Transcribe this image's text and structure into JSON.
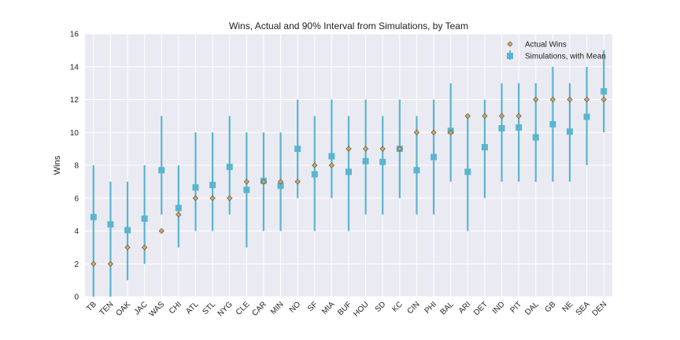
{
  "chart_data": {
    "type": "scatter",
    "title": "Wins, Actual and 90% Interval from Simulations, by Team",
    "xlabel": "",
    "ylabel": "Wins",
    "ylim": [
      0,
      16
    ],
    "yticks": [
      0,
      2,
      4,
      6,
      8,
      10,
      12,
      14,
      16
    ],
    "grid": true,
    "legend_position": "top-right",
    "categories": [
      "TB",
      "TEN",
      "OAK",
      "JAC",
      "WAS",
      "CHI",
      "ATL",
      "STL",
      "NYG",
      "CLE",
      "CAR",
      "MIN",
      "NO",
      "SF",
      "MIA",
      "BUF",
      "HOU",
      "SD",
      "KC",
      "CIN",
      "PHI",
      "BAL",
      "ARI",
      "DET",
      "IND",
      "PIT",
      "DAL",
      "GB",
      "NE",
      "SEA",
      "DEN"
    ],
    "series": [
      {
        "name": "Actual Wins",
        "marker": "diamond",
        "color": "#c8a86a",
        "values": [
          2,
          2,
          3,
          3,
          4,
          5,
          6,
          6,
          6,
          7,
          7,
          7,
          7,
          8,
          8,
          9,
          9,
          9,
          9,
          10,
          10,
          10,
          11,
          11,
          11,
          11,
          12,
          12,
          12,
          12,
          12
        ]
      },
      {
        "name": "Simulations, with Mean",
        "marker": "square",
        "color": "#5bb5cf",
        "values": [
          4.85,
          4.4,
          4.05,
          4.75,
          7.7,
          5.4,
          6.65,
          6.8,
          7.9,
          6.5,
          7.05,
          6.75,
          9.0,
          7.45,
          8.55,
          7.6,
          8.25,
          8.2,
          9.0,
          7.7,
          8.5,
          10.1,
          7.6,
          9.1,
          10.25,
          10.3,
          9.7,
          10.5,
          10.05,
          10.95,
          12.5
        ],
        "low": [
          0,
          0,
          1,
          2,
          5,
          3,
          4,
          4,
          5,
          3,
          4,
          4,
          6,
          4,
          6,
          4,
          5,
          5,
          6,
          5,
          5,
          7,
          4,
          6,
          7,
          7,
          7,
          7,
          7,
          8,
          10
        ],
        "high": [
          8,
          7,
          7,
          8,
          11,
          8,
          10,
          10,
          11,
          10,
          10,
          10,
          12,
          11,
          12,
          11,
          12,
          11,
          12,
          11,
          12,
          13,
          11,
          12,
          13,
          13,
          13,
          14,
          13,
          14,
          15
        ]
      }
    ]
  },
  "colors": {
    "plot_background": "#eaeaf2",
    "grid": "#ffffff",
    "actual": "#c8a86a",
    "simulation": "#5bb5cf"
  }
}
